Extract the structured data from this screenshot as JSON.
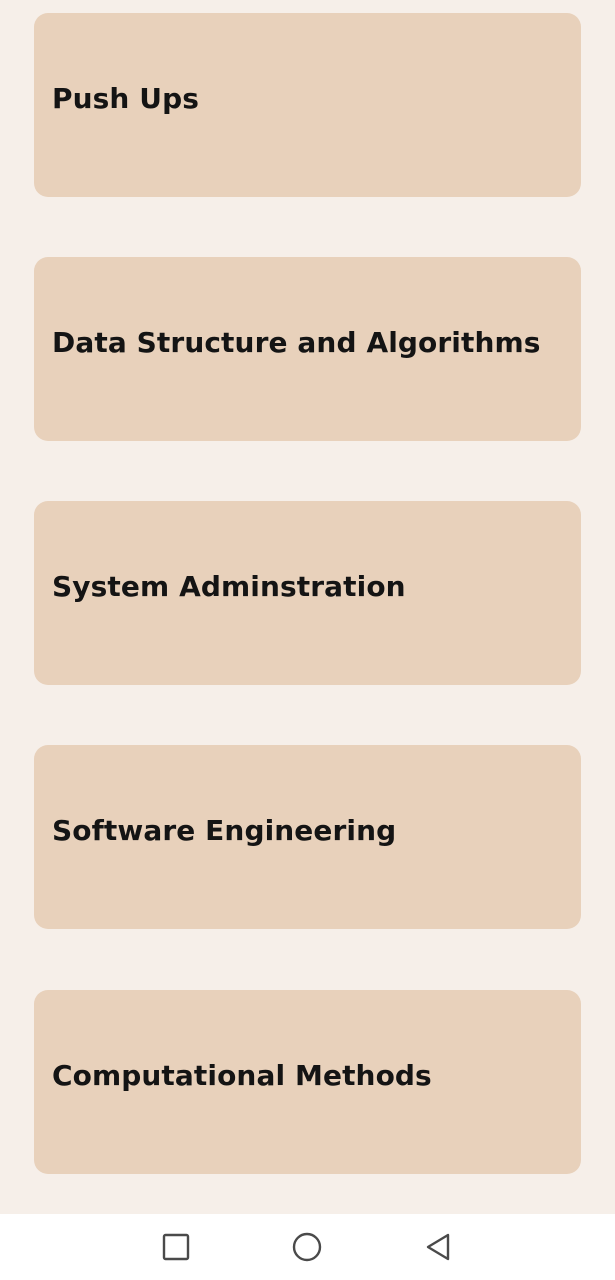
{
  "cards": [
    {
      "label": "Push Ups"
    },
    {
      "label": "Data Structure and Algorithms"
    },
    {
      "label": "System Adminstration"
    },
    {
      "label": "Software Engineering"
    },
    {
      "label": "Computational Methods"
    }
  ],
  "navbar": {
    "recent_icon": "square-icon",
    "home_icon": "circle-icon",
    "back_icon": "triangle-back-icon"
  },
  "colors": {
    "background": "#f6efe9",
    "card": "#e8d1bb",
    "text": "#141414",
    "navbar": "#ffffff",
    "nav_icon": "#4a4a4a"
  }
}
